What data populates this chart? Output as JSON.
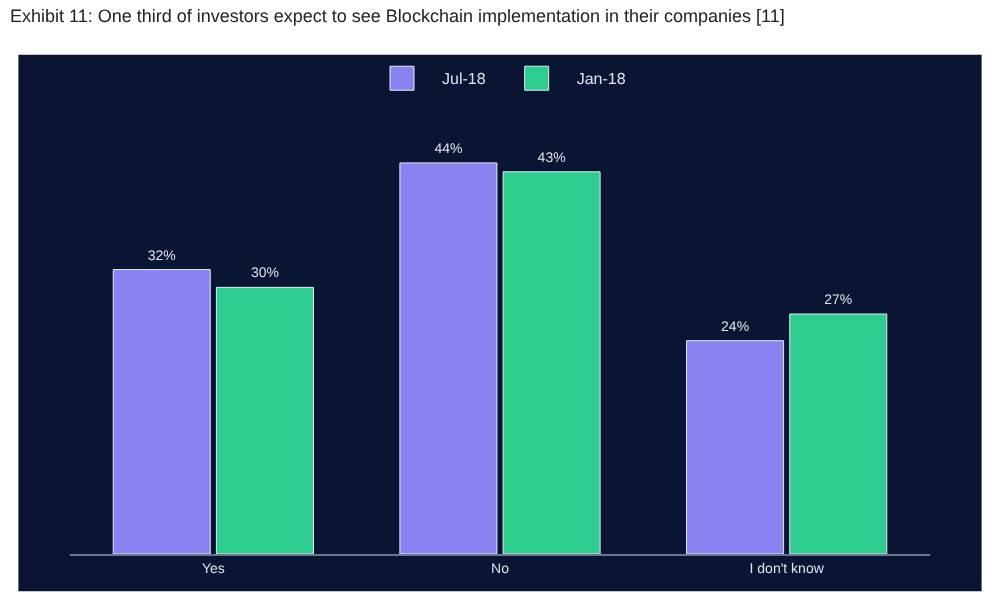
{
  "chart_data": {
    "type": "bar",
    "title": "Exhibit 11: One third of investors expect to see Blockchain implementation in their companies [11]",
    "categories": [
      "Yes",
      "No",
      "I don't know"
    ],
    "series": [
      {
        "name": "Jul-18",
        "color": "#8a82f0",
        "values": [
          32,
          44,
          24
        ],
        "value_labels": [
          "32%",
          "44%",
          "24%"
        ]
      },
      {
        "name": "Jan-18",
        "color": "#2ecc8e",
        "values": [
          30,
          43,
          27
        ],
        "value_labels": [
          "30%",
          "43%",
          "27%"
        ]
      }
    ],
    "legend": "top",
    "grid": false
  }
}
